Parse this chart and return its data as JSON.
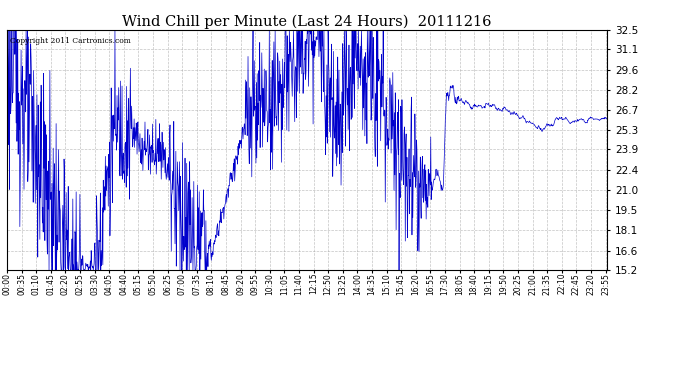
{
  "title": "Wind Chill per Minute (Last 24 Hours)  20111216",
  "copyright": "Copyright 2011 Cartronics.com",
  "line_color": "#0000cc",
  "bg_color": "#ffffff",
  "grid_color": "#aaaaaa",
  "yticks": [
    15.2,
    16.6,
    18.1,
    19.5,
    21.0,
    22.4,
    23.9,
    25.3,
    26.7,
    28.2,
    29.6,
    31.1,
    32.5
  ],
  "ylim": [
    15.2,
    32.5
  ],
  "xlabel_fontsize": 5.5,
  "ylabel_fontsize": 7.5,
  "title_fontsize": 10.5,
  "tick_interval_min": 35,
  "figwidth": 6.9,
  "figheight": 3.75,
  "dpi": 100
}
